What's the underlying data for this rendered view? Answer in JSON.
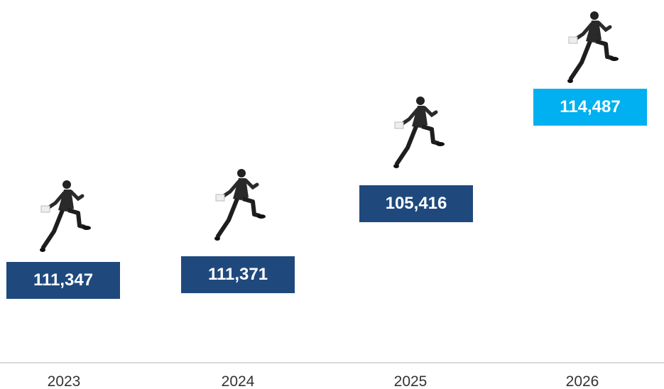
{
  "steps": [
    {
      "year": "2023",
      "value": "111,347"
    },
    {
      "year": "2024",
      "value": "111,371"
    },
    {
      "year": "2025",
      "value": "105,416"
    },
    {
      "year": "2026",
      "value": "114,487"
    }
  ]
}
